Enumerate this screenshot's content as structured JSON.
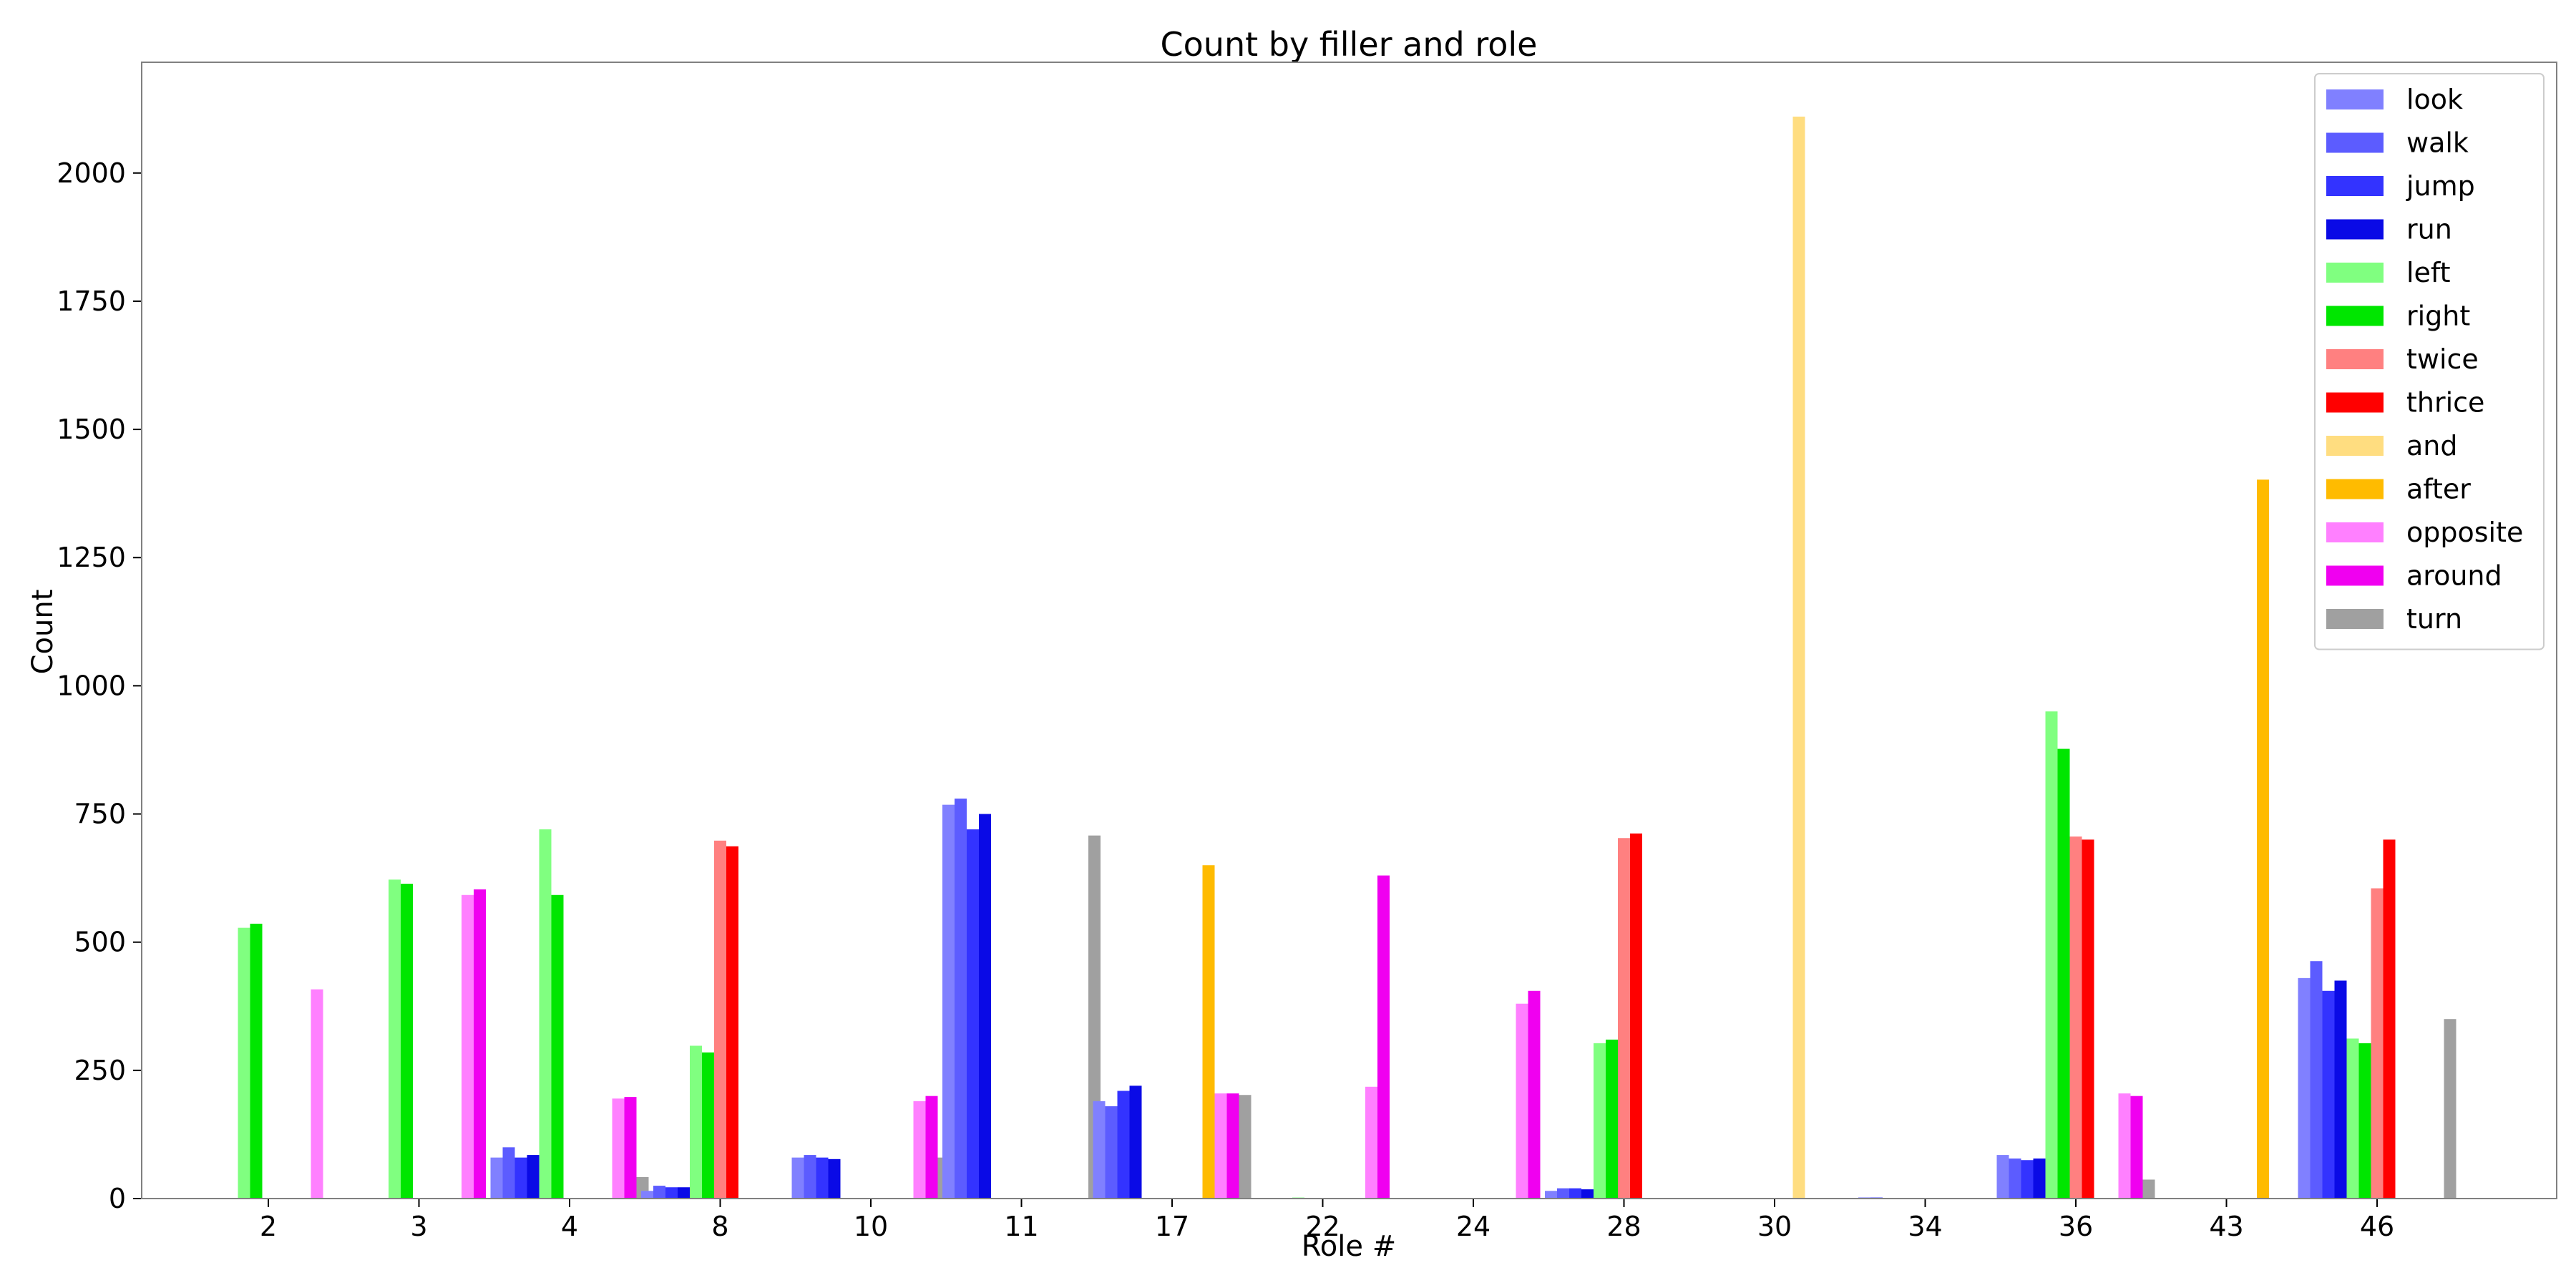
{
  "chart_data": {
    "type": "bar",
    "title": "Count by filler and role",
    "xlabel": "Role #",
    "ylabel": "Count",
    "ylim": [
      0,
      2216
    ],
    "yticks": [
      0,
      250,
      500,
      750,
      1000,
      1250,
      1500,
      1750,
      2000
    ],
    "categories": [
      "2",
      "3",
      "4",
      "8",
      "10",
      "11",
      "17",
      "22",
      "24",
      "28",
      "30",
      "34",
      "36",
      "43",
      "46"
    ],
    "legend_position": "top-right",
    "series": [
      {
        "name": "look",
        "color": "#8080ff",
        "values": [
          0,
          0,
          80,
          15,
          80,
          768,
          190,
          0,
          0,
          15,
          0,
          0,
          85,
          0,
          430
        ]
      },
      {
        "name": "walk",
        "color": "#5c5cff",
        "values": [
          0,
          0,
          100,
          25,
          85,
          780,
          180,
          0,
          0,
          20,
          0,
          2,
          78,
          0,
          463
        ]
      },
      {
        "name": "jump",
        "color": "#3333ff",
        "values": [
          0,
          0,
          80,
          22,
          80,
          720,
          210,
          0,
          0,
          20,
          0,
          2,
          75,
          0,
          405
        ]
      },
      {
        "name": "run",
        "color": "#0a0ae6",
        "values": [
          0,
          0,
          85,
          22,
          77,
          750,
          220,
          0,
          0,
          18,
          0,
          1,
          78,
          0,
          425
        ]
      },
      {
        "name": "left",
        "color": "#80ff80",
        "values": [
          528,
          622,
          720,
          298,
          0,
          0,
          0,
          2,
          0,
          303,
          0,
          0,
          950,
          0,
          312
        ]
      },
      {
        "name": "right",
        "color": "#00e600",
        "values": [
          536,
          614,
          592,
          285,
          0,
          0,
          0,
          1,
          0,
          310,
          0,
          0,
          877,
          0,
          303
        ]
      },
      {
        "name": "twice",
        "color": "#ff8080",
        "values": [
          0,
          0,
          0,
          698,
          0,
          0,
          0,
          0,
          0,
          703,
          0,
          0,
          706,
          0,
          605
        ]
      },
      {
        "name": "thrice",
        "color": "#ff0000",
        "values": [
          0,
          0,
          0,
          687,
          0,
          0,
          0,
          0,
          0,
          712,
          0,
          0,
          700,
          0,
          700
        ]
      },
      {
        "name": "and",
        "color": "#ffdd80",
        "values": [
          0,
          0,
          0,
          0,
          0,
          0,
          0,
          0,
          0,
          0,
          2110,
          0,
          0,
          0,
          0
        ]
      },
      {
        "name": "after",
        "color": "#ffbb00",
        "values": [
          0,
          0,
          0,
          0,
          0,
          0,
          650,
          0,
          0,
          0,
          0,
          0,
          0,
          1402,
          0
        ]
      },
      {
        "name": "opposite",
        "color": "#ff80ff",
        "values": [
          408,
          592,
          195,
          0,
          190,
          0,
          205,
          218,
          380,
          0,
          0,
          0,
          205,
          0,
          0
        ]
      },
      {
        "name": "around",
        "color": "#f000f0",
        "values": [
          0,
          603,
          198,
          0,
          200,
          0,
          205,
          630,
          405,
          0,
          0,
          0,
          200,
          0,
          0
        ]
      },
      {
        "name": "turn",
        "color": "#a0a0a0",
        "values": [
          0,
          0,
          42,
          0,
          80,
          708,
          202,
          0,
          0,
          0,
          0,
          0,
          37,
          0,
          350
        ]
      }
    ]
  }
}
